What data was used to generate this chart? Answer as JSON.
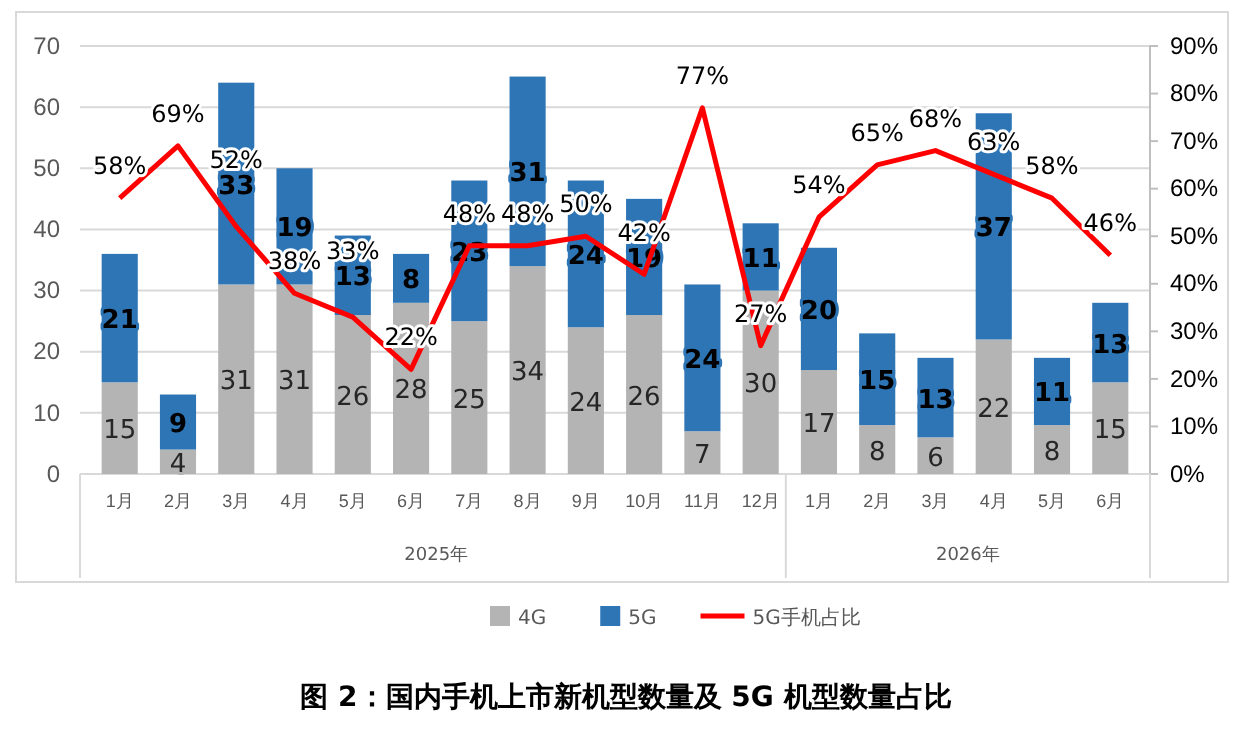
{
  "chart_data": {
    "type": "bar",
    "title": "图 2：国内手机上市新机型数量及 5G 机型数量占比",
    "categories": [
      "1月",
      "2月",
      "3月",
      "4月",
      "5月",
      "6月",
      "7月",
      "8月",
      "9月",
      "10月",
      "11月",
      "12月",
      "1月",
      "2月",
      "3月",
      "4月",
      "5月",
      "6月"
    ],
    "annotations": [
      "2025年",
      "2026年"
    ],
    "stacked": true,
    "data_labels": true,
    "grid": "y",
    "legend": "bottom",
    "ylim": [
      0,
      70
    ],
    "yticks": [
      0,
      10,
      20,
      30,
      40,
      50,
      60,
      70
    ],
    "y2lim": [
      0,
      90
    ],
    "y2ticks": [
      {
        "value": 0,
        "label": "0%"
      },
      {
        "value": 10,
        "label": "10%"
      },
      {
        "value": 20,
        "label": "20%"
      },
      {
        "value": 30,
        "label": "30%"
      },
      {
        "value": 40,
        "label": "40%"
      },
      {
        "value": 50,
        "label": "50%"
      },
      {
        "value": 60,
        "label": "60%"
      },
      {
        "value": 70,
        "label": "70%"
      },
      {
        "value": 80,
        "label": "80%"
      },
      {
        "value": 90,
        "label": "90%"
      }
    ],
    "series": [
      {
        "name": "4G",
        "color": "#b4b4b4",
        "values": [
          15,
          4,
          31,
          31,
          26,
          28,
          25,
          34,
          24,
          26,
          7,
          30,
          17,
          8,
          6,
          22,
          8,
          15
        ]
      },
      {
        "name": "5G",
        "color": "#2e75b6",
        "values": [
          21,
          9,
          33,
          19,
          13,
          8,
          23,
          31,
          24,
          19,
          24,
          11,
          20,
          15,
          13,
          37,
          11,
          13
        ]
      },
      {
        "name": "5G手机占比",
        "type": "line",
        "axis": "y2",
        "color": "#ff0000",
        "values": [
          58,
          69,
          52,
          38,
          33,
          22,
          48,
          48,
          50,
          42,
          77,
          27,
          54,
          65,
          68,
          63,
          58,
          46
        ],
        "value_labels": [
          "58%",
          "69%",
          "52%",
          "38%",
          "33%",
          "22%",
          "48%",
          "48%",
          "50%",
          "42%",
          "77%",
          "27%",
          "54%",
          "65%",
          "68%",
          "63%",
          "58%",
          "46%"
        ]
      }
    ]
  }
}
